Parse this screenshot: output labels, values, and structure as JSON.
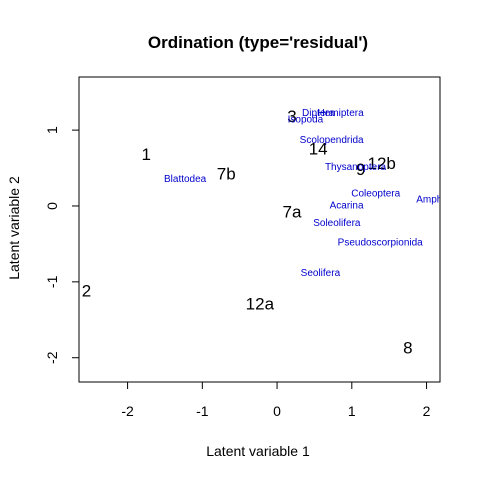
{
  "chart_data": {
    "type": "scatter",
    "title": "Ordination (type='residual')",
    "xlabel": "Latent variable 1",
    "ylabel": "Latent variable 2",
    "xlim": [
      -2.65,
      2.18
    ],
    "ylim": [
      -2.32,
      1.7
    ],
    "xticks": [
      -2,
      -1,
      0,
      1,
      2
    ],
    "yticks": [
      -2,
      -1,
      0,
      1
    ],
    "grid": false,
    "site_color": "#000000",
    "species_color": "#0000cc",
    "sites": [
      {
        "label": "1",
        "x": -1.75,
        "y": 0.68
      },
      {
        "label": "2",
        "x": -2.55,
        "y": -1.12
      },
      {
        "label": "3",
        "x": 0.2,
        "y": 1.18
      },
      {
        "label": "14",
        "x": 0.55,
        "y": 0.75
      },
      {
        "label": "12b",
        "x": 1.4,
        "y": 0.56
      },
      {
        "label": "9",
        "x": 1.12,
        "y": 0.48
      },
      {
        "label": "7b",
        "x": -0.68,
        "y": 0.42
      },
      {
        "label": "7a",
        "x": 0.2,
        "y": -0.08
      },
      {
        "label": "12a",
        "x": -0.23,
        "y": -1.29
      },
      {
        "label": "8",
        "x": 1.75,
        "y": -1.87
      }
    ],
    "species": [
      {
        "label": "Diptera",
        "x": 0.55,
        "y": 1.22
      },
      {
        "label": "Hemiptera",
        "x": 0.85,
        "y": 1.22
      },
      {
        "label": "Isopoda",
        "x": 0.38,
        "y": 1.13
      },
      {
        "label": "Scolopendrida",
        "x": 0.73,
        "y": 0.86
      },
      {
        "label": "Thysanoptera",
        "x": 1.05,
        "y": 0.51
      },
      {
        "label": "Blattodea",
        "x": -1.23,
        "y": 0.35
      },
      {
        "label": "Coleoptera",
        "x": 1.32,
        "y": 0.16
      },
      {
        "label": "Amphipoda",
        "x": 2.2,
        "y": 0.08
      },
      {
        "label": "Acarina",
        "x": 0.93,
        "y": 0.0
      },
      {
        "label": "Soleolifera",
        "x": 0.8,
        "y": -0.23
      },
      {
        "label": "Pseudoscorpionida",
        "x": 1.38,
        "y": -0.49
      },
      {
        "label": "Seolifera",
        "x": 0.58,
        "y": -0.89
      }
    ]
  }
}
